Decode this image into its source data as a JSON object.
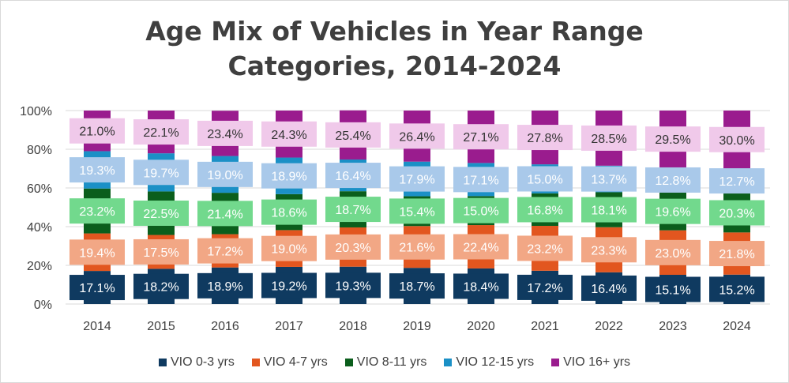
{
  "chart_data": {
    "type": "bar",
    "stacked": "percent",
    "title": "Age Mix of Vehicles in Year Range Categories, 2014-2024",
    "title_lines": [
      "Age Mix of Vehicles in Year Range",
      "Categories, 2014-2024"
    ],
    "categories": [
      "2014",
      "2015",
      "2016",
      "2017",
      "2018",
      "2019",
      "2020",
      "2021",
      "2022",
      "2023",
      "2024"
    ],
    "ylim": [
      0,
      100
    ],
    "yticks": [
      "0%",
      "20%",
      "40%",
      "60%",
      "80%",
      "100%"
    ],
    "grid": true,
    "legend_position": "bottom",
    "series": [
      {
        "name": "VIO 0-3 yrs",
        "color": "#0f3a60",
        "label_bg": "#0f3a60",
        "label_color": "#ffffff",
        "values": [
          17.1,
          18.2,
          18.9,
          19.2,
          19.3,
          18.7,
          18.4,
          17.2,
          16.4,
          15.1,
          15.2
        ]
      },
      {
        "name": "VIO 4-7 yrs",
        "color": "#e2561f",
        "label_bg": "#f2a785",
        "label_color": "#ffffff",
        "values": [
          19.4,
          17.5,
          17.2,
          19.0,
          20.3,
          21.6,
          22.4,
          23.2,
          23.3,
          23.0,
          21.8
        ]
      },
      {
        "name": "VIO 8-11 yrs",
        "color": "#0b5e1c",
        "label_bg": "#72d98d",
        "label_color": "#ffffff",
        "values": [
          23.2,
          22.5,
          21.4,
          18.6,
          18.7,
          15.4,
          15.0,
          16.8,
          18.1,
          19.6,
          20.3
        ]
      },
      {
        "name": "VIO 12-15 yrs",
        "color": "#1b90c6",
        "label_bg": "#a9c9ea",
        "label_color": "#ffffff",
        "values": [
          19.3,
          19.7,
          19.0,
          18.9,
          16.4,
          17.9,
          17.1,
          15.0,
          13.7,
          12.8,
          12.7
        ]
      },
      {
        "name": "VIO 16+ yrs",
        "color": "#9a1c8e",
        "label_bg": "#f0c9ea",
        "label_color": "#333333",
        "values": [
          21.0,
          22.1,
          23.4,
          24.3,
          25.4,
          26.4,
          27.1,
          27.8,
          28.5,
          29.5,
          30.0
        ]
      }
    ]
  }
}
